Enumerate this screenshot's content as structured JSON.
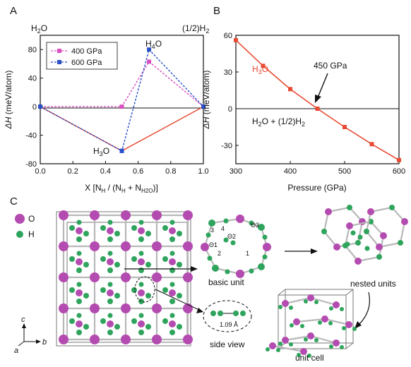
{
  "panels": {
    "a": "A",
    "b": "B",
    "c": "C"
  },
  "chart_data": [
    {
      "type": "line",
      "panel": "A",
      "xlabel": "X [NH / (NH + NH2O)]",
      "ylabel": "ΔH (meV/atom)",
      "xlim": [
        0,
        1
      ],
      "ylim": [
        -80,
        100
      ],
      "xticks": [
        "0.0",
        "0.2",
        "0.4",
        "0.6",
        "0.8",
        "1.0"
      ],
      "yticks": [
        "-80",
        "-40",
        "0",
        "40",
        "80"
      ],
      "corner_labels": {
        "left": "H2O",
        "right": "(1/2)H2"
      },
      "annotations": {
        "h4o": "H4O",
        "h3o": "H3O"
      },
      "legend": {
        "placement": "top-left"
      },
      "series": [
        {
          "name": "400 GPa",
          "color": "#d94fbf",
          "style": "dashed",
          "points": [
            [
              0,
              0
            ],
            [
              0.5,
              0
            ],
            [
              0.667,
              63
            ],
            [
              1,
              0
            ]
          ]
        },
        {
          "name": "600 GPa",
          "color": "#2a4fc8",
          "style": "dashed",
          "points": [
            [
              0,
              0
            ],
            [
              0.5,
              -62
            ],
            [
              0.667,
              80
            ],
            [
              1,
              0
            ]
          ]
        },
        {
          "color": "#e84a32",
          "style": "solid",
          "points": [
            [
              0,
              0
            ],
            [
              0.5,
              -62
            ],
            [
              1,
              0
            ]
          ]
        }
      ]
    },
    {
      "type": "line",
      "panel": "B",
      "xlabel": "Pressure (GPa)",
      "ylabel": "ΔH (meV/atom)",
      "xlim": [
        300,
        600
      ],
      "ylim": [
        -45,
        60
      ],
      "xticks": [
        "300",
        "400",
        "500",
        "600"
      ],
      "yticks": [
        "60",
        "30",
        "0",
        "-30"
      ],
      "annotations": {
        "series_label": "H3O",
        "ref_label": "H2O + (1/2)H2",
        "transition": "450 GPa"
      },
      "series": [
        {
          "name": "H3O",
          "color": "#e84a32",
          "x": [
            300,
            350,
            400,
            450,
            500,
            550,
            600
          ],
          "y": [
            56,
            35,
            16,
            0,
            -15,
            -29,
            -42
          ]
        }
      ]
    }
  ],
  "structure_panel": {
    "legend": [
      {
        "label": "O",
        "color": "#b44bb0"
      },
      {
        "label": "H",
        "color": "#2ea45c"
      }
    ],
    "axes": {
      "c": "c",
      "a": "a",
      "b": "b"
    },
    "captions": {
      "basic_unit": "basic unit",
      "nested_units": "nested units",
      "unit_cell": "unit cell",
      "side_view": "side view",
      "bond_length": "1.09 Å"
    },
    "basic_unit_labels": [
      "1",
      "2",
      "3",
      "4",
      "Θ1",
      "Θ2",
      "Θ3"
    ]
  },
  "colors": {
    "o_atom": "#b44bb0",
    "h_atom": "#2ea45c",
    "line_red": "#e84a32"
  }
}
